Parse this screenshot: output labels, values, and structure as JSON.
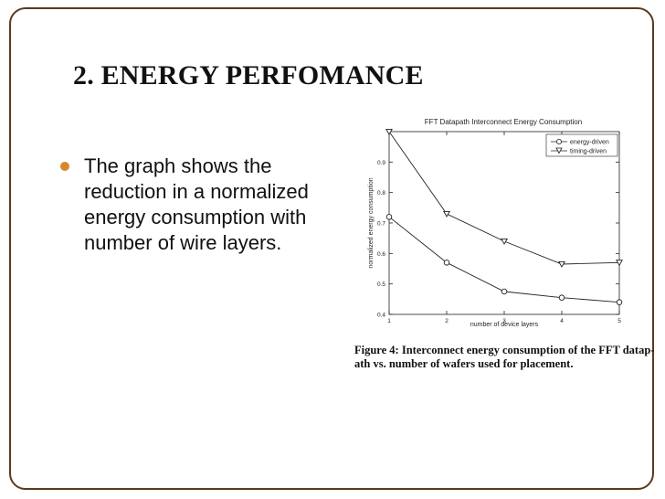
{
  "slide": {
    "title": "2. ENERGY PERFOMANCE",
    "bullet": "The graph shows the reduction in a normalized energy consumption with number of wire layers.",
    "caption_line1": "Figure 4: Interconnect energy consumption of the FFT datap-",
    "caption_line2": "ath vs. number of wafers used for placement.",
    "accent_color": "#d48a2a",
    "frame_color": "#5a3a1f"
  },
  "chart_data": {
    "type": "line",
    "title": "FFT Datapath Interconnect Energy Consumption",
    "xlabel": "number of device layers",
    "ylabel": "normalized energy consumption",
    "x": [
      1,
      2,
      3,
      4,
      5
    ],
    "xlim": [
      1,
      5
    ],
    "ylim": [
      0.4,
      1.0
    ],
    "xticks": [
      "1",
      "2",
      "3",
      "4",
      "5"
    ],
    "yticks": [
      "0.4",
      "0.5",
      "0.6",
      "0.7",
      "0.8",
      "0.9"
    ],
    "ytick_values": [
      0.4,
      0.5,
      0.6,
      0.7,
      0.8,
      0.9
    ],
    "grid": false,
    "legend_position": "top-right",
    "series": [
      {
        "name": "energy-driven",
        "marker": "circle",
        "values": [
          0.72,
          0.57,
          0.475,
          0.455,
          0.44
        ]
      },
      {
        "name": "timing-driven",
        "marker": "triangle-down",
        "values": [
          1.0,
          0.73,
          0.64,
          0.565,
          0.57
        ]
      }
    ]
  }
}
